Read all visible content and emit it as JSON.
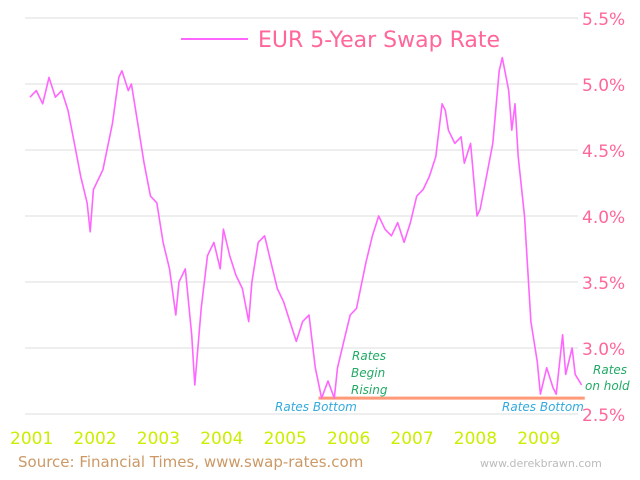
{
  "chart_data": {
    "type": "line",
    "title": "EUR 5-Year Swap Rate",
    "xlabel": "",
    "ylabel": "",
    "xlim": [
      2001,
      2010
    ],
    "ylim": [
      2.5,
      5.5
    ],
    "grid": true,
    "legend": "top-center",
    "y_ticks": [
      "5.5%",
      "5.0%",
      "4.5%",
      "4.0%",
      "3.5%",
      "3.0%",
      "2.5%"
    ],
    "y_tick_values": [
      5.5,
      5.0,
      4.5,
      4.0,
      3.5,
      3.0,
      2.5
    ],
    "x_ticks": [
      "2001",
      "2002",
      "2003",
      "2004",
      "2005",
      "2006",
      "2007",
      "2008",
      "2009"
    ],
    "series": [
      {
        "name": "EUR 5-Year Swap Rate",
        "color": "#ff66ff",
        "x": [
          2001.0,
          2001.1,
          2001.2,
          2001.3,
          2001.4,
          2001.5,
          2001.6,
          2001.7,
          2001.8,
          2001.9,
          2001.95,
          2002.0,
          2002.15,
          2002.3,
          2002.4,
          2002.45,
          2002.55,
          2002.6,
          2002.7,
          2002.8,
          2002.9,
          2003.0,
          2003.1,
          2003.2,
          2003.3,
          2003.35,
          2003.45,
          2003.55,
          2003.6,
          2003.7,
          2003.8,
          2003.9,
          2004.0,
          2004.05,
          2004.15,
          2004.25,
          2004.35,
          2004.45,
          2004.5,
          2004.6,
          2004.7,
          2004.8,
          2004.9,
          2005.0,
          2005.1,
          2005.2,
          2005.3,
          2005.4,
          2005.5,
          2005.6,
          2005.7,
          2005.8,
          2005.85,
          2005.95,
          2006.05,
          2006.15,
          2006.3,
          2006.4,
          2006.5,
          2006.6,
          2006.7,
          2006.8,
          2006.9,
          2007.0,
          2007.1,
          2007.2,
          2007.3,
          2007.4,
          2007.5,
          2007.55,
          2007.6,
          2007.7,
          2007.8,
          2007.85,
          2007.95,
          2008.05,
          2008.1,
          2008.2,
          2008.3,
          2008.4,
          2008.45,
          2008.55,
          2008.6,
          2008.65,
          2008.7,
          2008.8,
          2008.85,
          2008.9,
          2009.0,
          2009.05,
          2009.15,
          2009.25,
          2009.3,
          2009.4,
          2009.45,
          2009.55,
          2009.6,
          2009.7
        ],
        "y": [
          4.9,
          4.95,
          4.85,
          5.05,
          4.9,
          4.95,
          4.8,
          4.55,
          4.3,
          4.1,
          3.88,
          4.2,
          4.35,
          4.7,
          5.05,
          5.1,
          4.95,
          5.0,
          4.7,
          4.4,
          4.15,
          4.1,
          3.8,
          3.6,
          3.25,
          3.5,
          3.6,
          3.1,
          2.72,
          3.3,
          3.7,
          3.8,
          3.6,
          3.9,
          3.7,
          3.55,
          3.45,
          3.2,
          3.5,
          3.8,
          3.85,
          3.65,
          3.45,
          3.35,
          3.2,
          3.05,
          3.2,
          3.25,
          2.85,
          2.62,
          2.75,
          2.62,
          2.85,
          3.05,
          3.25,
          3.3,
          3.65,
          3.85,
          4.0,
          3.9,
          3.85,
          3.95,
          3.8,
          3.95,
          4.15,
          4.2,
          4.3,
          4.45,
          4.85,
          4.8,
          4.65,
          4.55,
          4.6,
          4.4,
          4.55,
          4.0,
          4.05,
          4.3,
          4.55,
          5.1,
          5.2,
          4.95,
          4.65,
          4.85,
          4.45,
          4.0,
          3.6,
          3.2,
          2.9,
          2.65,
          2.85,
          2.7,
          2.65,
          3.1,
          2.8,
          3.0,
          2.8,
          2.72
        ]
      }
    ],
    "reference_line": {
      "value": 2.62,
      "from": 2005.55,
      "to": 2009.75,
      "color": "#ff9977"
    },
    "annotations": {
      "rates_bottom_1": "Rates Bottom",
      "rates_bottom_2": "Rates Bottom",
      "begin_rising": [
        "Rates",
        "Begin",
        "Rising"
      ],
      "on_hold": [
        "Rates",
        "on hold"
      ]
    },
    "colors": {
      "ytick": "#ff6699",
      "xtick": "#ccee00",
      "green": "#22aa66",
      "blue": "#33aadd"
    }
  },
  "footer": {
    "source": "Source: Financial Times, www.swap-rates.com",
    "watermark": "www.derekbrawn.com"
  }
}
